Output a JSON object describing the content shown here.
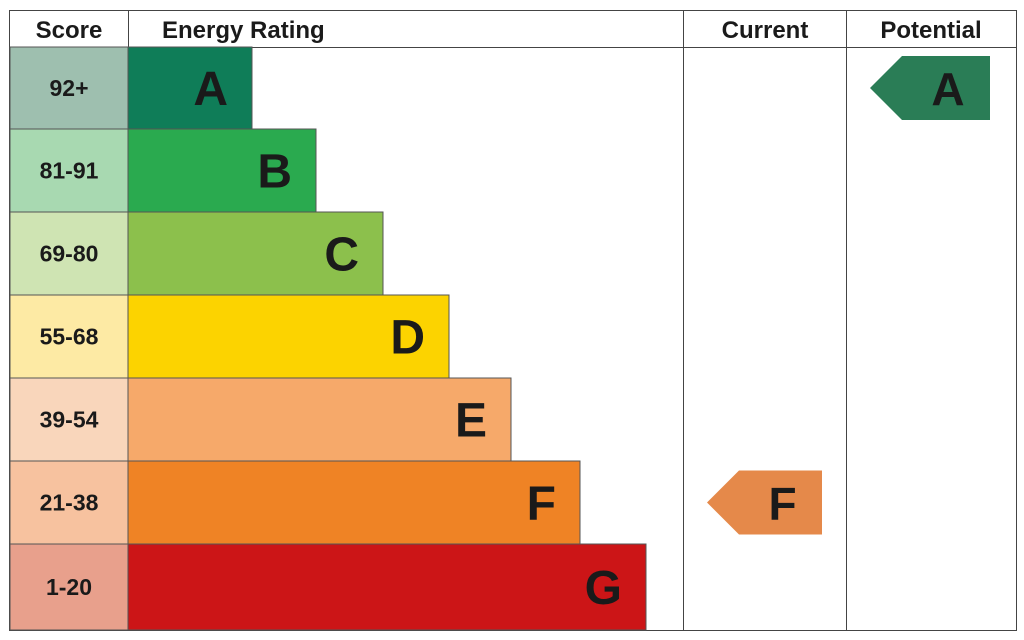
{
  "chart_data": {
    "type": "bar",
    "headers": {
      "score": "Score",
      "rating": "Energy Rating",
      "current": "Current",
      "potential": "Potential"
    },
    "bands": [
      {
        "letter": "A",
        "range": "92+",
        "bar_color": "#0f7d58",
        "score_color": "#9ebfaf"
      },
      {
        "letter": "B",
        "range": "81-91",
        "bar_color": "#2aaa4f",
        "score_color": "#a8d9b1"
      },
      {
        "letter": "C",
        "range": "69-80",
        "bar_color": "#8cc04c",
        "score_color": "#cfe4b3"
      },
      {
        "letter": "D",
        "range": "55-68",
        "bar_color": "#fcd300",
        "score_color": "#fdeaa4"
      },
      {
        "letter": "E",
        "range": "39-54",
        "bar_color": "#f6a96a",
        "score_color": "#f9d6bb"
      },
      {
        "letter": "F",
        "range": "21-38",
        "bar_color": "#ef8325",
        "score_color": "#f7c29f"
      },
      {
        "letter": "G",
        "range": "1-20",
        "bar_color": "#cc1517",
        "score_color": "#e8a08c"
      }
    ],
    "current": {
      "letter": "F",
      "color": "#e5894a"
    },
    "potential": {
      "letter": "A",
      "color": "#2a7d56"
    }
  }
}
